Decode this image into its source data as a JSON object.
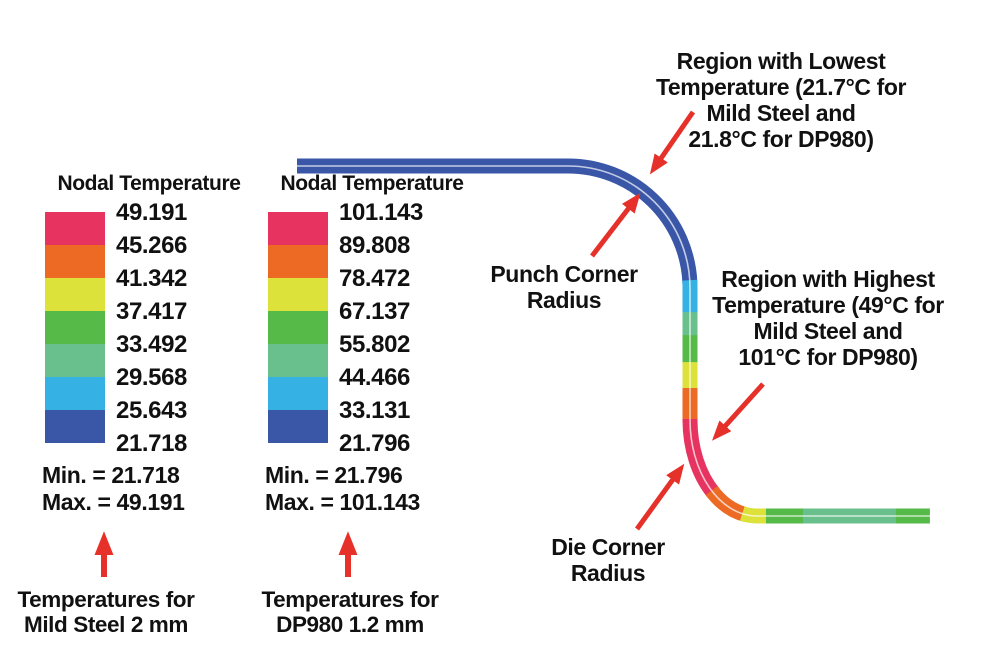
{
  "palette": {
    "crimson": "#e73360",
    "orange": "#ec6a24",
    "yellow": "#dde23b",
    "green": "#56ba48",
    "seagreen": "#69c08c",
    "cyan": "#35b2e3",
    "blue": "#3a56a7",
    "arrow_red": "#e6312a",
    "text": "#111111"
  },
  "legends": [
    {
      "title": "Nodal Temperature",
      "values": [
        "49.191",
        "45.266",
        "41.342",
        "37.417",
        "33.492",
        "29.568",
        "25.643",
        "21.718"
      ],
      "min": "Min. = 21.718",
      "max": "Max. = 49.191",
      "caption": [
        "Temperatures for",
        "Mild Steel 2 mm"
      ]
    },
    {
      "title": "Nodal Temperature",
      "values": [
        "101.143",
        "89.808",
        "78.472",
        "67.137",
        "55.802",
        "44.466",
        "33.131",
        "21.796"
      ],
      "min": "Min. = 21.796",
      "max": "Max. = 101.143",
      "caption": [
        "Temperatures for",
        "DP980 1.2 mm"
      ]
    }
  ],
  "annotations": {
    "lowest": [
      "Region with Lowest",
      "Temperature (21.7°C for",
      "Mild Steel and",
      "21.8°C for DP980)"
    ],
    "punch": [
      "Punch Corner",
      "Radius"
    ],
    "highest": [
      "Region with Highest",
      "Temperature (49°C for",
      "Mild Steel and",
      "101°C for DP980)"
    ],
    "die": [
      "Die Corner",
      "Radius"
    ]
  },
  "profile": {
    "path_length": 897,
    "segments": [
      {
        "color": "blue",
        "from": 0,
        "to": 455
      },
      {
        "color": "cyan",
        "from": 455,
        "to": 487
      },
      {
        "color": "seagreen",
        "from": 487,
        "to": 510
      },
      {
        "color": "green",
        "from": 510,
        "to": 537
      },
      {
        "color": "yellow",
        "from": 537,
        "to": 563
      },
      {
        "color": "orange",
        "from": 563,
        "to": 594
      },
      {
        "color": "crimson",
        "from": 594,
        "to": 670
      },
      {
        "color": "orange",
        "from": 670,
        "to": 709
      },
      {
        "color": "yellow",
        "from": 709,
        "to": 733
      },
      {
        "color": "green",
        "from": 733,
        "to": 770
      },
      {
        "color": "seagreen",
        "from": 770,
        "to": 863
      },
      {
        "color": "green",
        "from": 863,
        "to": 897
      }
    ]
  }
}
